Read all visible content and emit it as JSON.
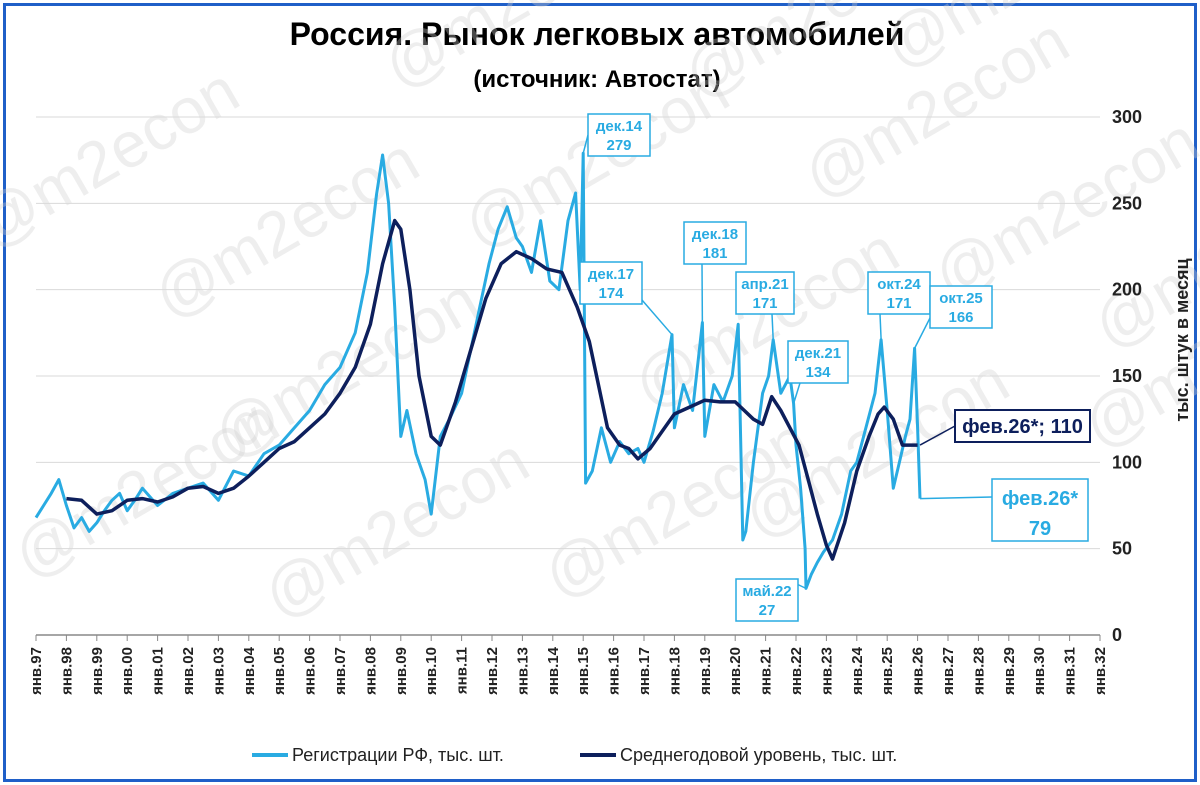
{
  "chart_data": {
    "type": "line",
    "title": "Россия. Рынок легковых автомобилей",
    "subtitle": "(источник: Автостат)",
    "ylabel": "тыс. штук в месяц",
    "ylim": [
      0,
      300
    ],
    "yticks": [
      "0",
      "50",
      "100",
      "150",
      "200",
      "250",
      "300"
    ],
    "xticks": [
      "янв.97",
      "янв.98",
      "янв.99",
      "янв.00",
      "янв.01",
      "янв.02",
      "янв.03",
      "янв.04",
      "янв.05",
      "янв.06",
      "янв.07",
      "янв.08",
      "янв.09",
      "янв.10",
      "янв.11",
      "янв.12",
      "янв.13",
      "янв.14",
      "янв.15",
      "янв.16",
      "янв.17",
      "янв.18",
      "янв.19",
      "янв.20",
      "янв.21",
      "янв.22",
      "янв.23",
      "янв.24",
      "янв.25",
      "янв.26",
      "янв.27",
      "янв.28",
      "янв.29",
      "янв.30",
      "янв.31",
      "янв.32"
    ],
    "xlim": [
      1997.0,
      2032.0
    ],
    "grid": true,
    "legend_position": "bottom",
    "series": [
      {
        "name": "Регистрации РФ, тыс. шт.",
        "color": "#29abe2",
        "x": [
          1997.0,
          1997.25,
          1997.5,
          1997.75,
          1998.0,
          1998.25,
          1998.5,
          1998.75,
          1999.0,
          1999.25,
          1999.5,
          1999.75,
          2000.0,
          2000.25,
          2000.5,
          2000.75,
          2001.0,
          2001.5,
          2002.0,
          2002.5,
          2003.0,
          2003.5,
          2004.0,
          2004.5,
          2005.0,
          2005.5,
          2006.0,
          2006.5,
          2007.0,
          2007.5,
          2007.9,
          2008.2,
          2008.4,
          2008.6,
          2008.8,
          2009.0,
          2009.2,
          2009.5,
          2009.8,
          2010.0,
          2010.3,
          2010.6,
          2011.0,
          2011.3,
          2011.6,
          2011.9,
          2012.2,
          2012.5,
          2012.8,
          2013.0,
          2013.3,
          2013.6,
          2013.9,
          2014.2,
          2014.5,
          2014.75,
          2014.9,
          2015.0,
          2015.08,
          2015.3,
          2015.6,
          2015.9,
          2016.2,
          2016.5,
          2016.8,
          2017.0,
          2017.3,
          2017.6,
          2017.92,
          2018.0,
          2018.3,
          2018.6,
          2018.92,
          2019.0,
          2019.3,
          2019.6,
          2019.9,
          2020.1,
          2020.25,
          2020.35,
          2020.6,
          2020.9,
          2021.1,
          2021.25,
          2021.5,
          2021.8,
          2021.92,
          2022.0,
          2022.15,
          2022.3,
          2022.33,
          2022.5,
          2022.7,
          2022.9,
          2023.2,
          2023.5,
          2023.8,
          2024.0,
          2024.3,
          2024.6,
          2024.8,
          2025.0,
          2025.2,
          2025.4,
          2025.6,
          2025.75,
          2025.9,
          2026.0,
          2026.08
        ],
        "y": [
          68,
          75,
          82,
          90,
          75,
          62,
          68,
          60,
          65,
          72,
          78,
          82,
          72,
          78,
          85,
          80,
          75,
          82,
          85,
          88,
          78,
          95,
          92,
          105,
          110,
          120,
          130,
          145,
          155,
          175,
          210,
          255,
          278,
          250,
          190,
          115,
          130,
          105,
          90,
          70,
          115,
          125,
          140,
          165,
          190,
          215,
          235,
          248,
          230,
          225,
          210,
          240,
          205,
          200,
          240,
          256,
          200,
          279,
          88,
          95,
          120,
          100,
          112,
          105,
          108,
          100,
          118,
          140,
          174,
          120,
          145,
          130,
          181,
          115,
          145,
          135,
          150,
          180,
          55,
          60,
          100,
          140,
          150,
          171,
          140,
          150,
          134,
          110,
          85,
          50,
          27,
          35,
          42,
          48,
          55,
          70,
          95,
          100,
          120,
          140,
          171,
          130,
          85,
          100,
          115,
          125,
          166,
          120,
          79
        ]
      },
      {
        "name": "Среднегодовой уровень, тыс. шт.",
        "color": "#0d1f5c",
        "x": [
          1998.0,
          1998.5,
          1999.0,
          1999.5,
          2000.0,
          2000.5,
          2001.0,
          2001.5,
          2002.0,
          2002.5,
          2003.0,
          2003.5,
          2004.0,
          2004.5,
          2005.0,
          2005.5,
          2006.0,
          2006.5,
          2007.0,
          2007.5,
          2008.0,
          2008.4,
          2008.8,
          2009.0,
          2009.3,
          2009.6,
          2010.0,
          2010.3,
          2010.8,
          2011.3,
          2011.8,
          2012.3,
          2012.8,
          2013.3,
          2013.8,
          2014.3,
          2014.8,
          2015.2,
          2015.5,
          2015.8,
          2016.2,
          2016.5,
          2016.8,
          2017.2,
          2017.6,
          2018.0,
          2018.5,
          2019.0,
          2019.5,
          2020.0,
          2020.3,
          2020.6,
          2020.9,
          2021.2,
          2021.5,
          2021.8,
          2022.1,
          2022.4,
          2022.7,
          2023.0,
          2023.2,
          2023.6,
          2024.0,
          2024.4,
          2024.7,
          2024.9,
          2025.2,
          2025.5,
          2025.8,
          2026.0
        ],
        "y": [
          79,
          78,
          70,
          72,
          78,
          79,
          77,
          80,
          85,
          86,
          82,
          85,
          92,
          100,
          108,
          112,
          120,
          128,
          140,
          155,
          180,
          215,
          240,
          235,
          200,
          150,
          115,
          110,
          135,
          165,
          195,
          215,
          222,
          218,
          212,
          210,
          190,
          170,
          145,
          120,
          110,
          108,
          102,
          108,
          118,
          128,
          132,
          136,
          135,
          135,
          130,
          125,
          122,
          138,
          130,
          120,
          110,
          90,
          70,
          52,
          44,
          65,
          95,
          115,
          128,
          132,
          125,
          110,
          110,
          110
        ]
      }
    ],
    "annotations": [
      {
        "label": "дек.14",
        "value": "279"
      },
      {
        "label": "дек.17",
        "value": "174"
      },
      {
        "label": "дек.18",
        "value": "181"
      },
      {
        "label": "апр.21",
        "value": "171"
      },
      {
        "label": "дек.21",
        "value": "134"
      },
      {
        "label": "май.22",
        "value": "27"
      },
      {
        "label": "окт.24",
        "value": "171"
      },
      {
        "label": "окт.25",
        "value": "166"
      },
      {
        "label": "фев.26*",
        "value": "79"
      },
      {
        "label": "фев.26*; 110",
        "value": ""
      }
    ],
    "watermark": "@m2econ"
  }
}
